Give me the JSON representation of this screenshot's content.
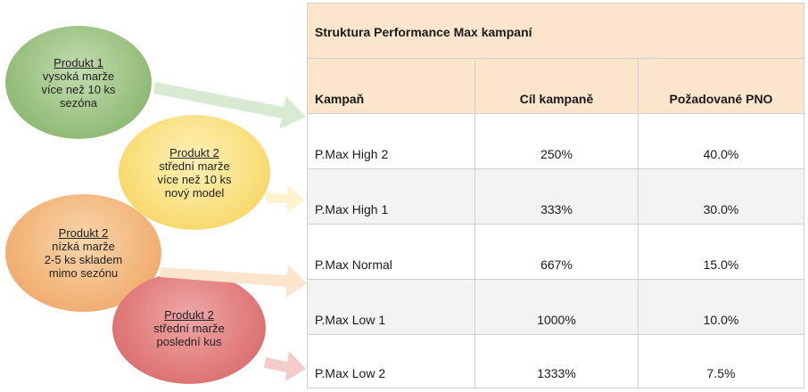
{
  "colors": {
    "header_bg": "#fce5cd",
    "row_alt": "#f3f3f3",
    "green": "#98c07e",
    "yellow": "#f9de7b",
    "orange": "#f2b478",
    "red": "#e07a7a"
  },
  "bubbles": [
    {
      "title": "Produkt 1",
      "lines": [
        "vysoká marže",
        "více než 10 ks",
        "sezóna"
      ]
    },
    {
      "title": "Produkt 2",
      "lines": [
        "střední marže",
        "více než 10 ks",
        "nový model"
      ]
    },
    {
      "title": "Produkt 2",
      "lines": [
        "nízká marže",
        "2-5 ks skladem",
        "mimo sezónu"
      ]
    },
    {
      "title": "Produkt 2",
      "lines": [
        "střední marže",
        "poslední kus"
      ]
    }
  ],
  "table": {
    "title": "Struktura Performance Max kampaní",
    "headers": [
      "Kampaň",
      "Cíl kampaně",
      "Požadované PNO"
    ],
    "rows": [
      [
        "P.Max High 2",
        "250%",
        "40.0%"
      ],
      [
        "P.Max High 1",
        "333%",
        "30.0%"
      ],
      [
        "P.Max Normal",
        "667%",
        "15.0%"
      ],
      [
        "P.Max Low 1",
        "1000%",
        "10.0%"
      ],
      [
        "P.Max Low 2",
        "1333%",
        "7.5%"
      ]
    ]
  }
}
